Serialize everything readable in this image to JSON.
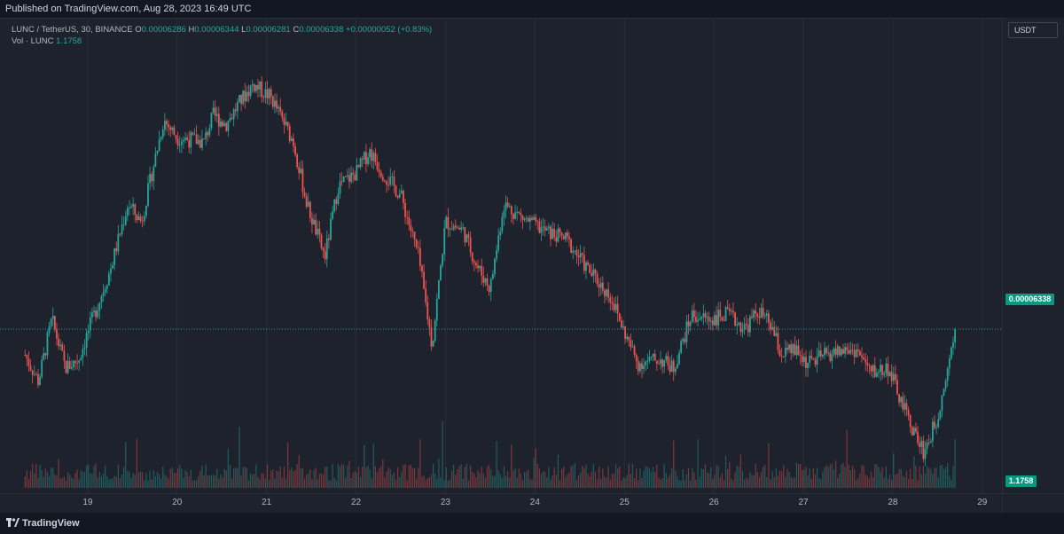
{
  "header": {
    "published": "Published on TradingView.com, Aug 28, 2023 16:49 UTC"
  },
  "legend": {
    "symbol": "LUNC / TetherUS, 30, BINANCE",
    "open_label": "O",
    "open": "0.00006286",
    "high_label": "H",
    "high": "0.00006344",
    "low_label": "L",
    "low": "0.00006281",
    "close_label": "C",
    "close": "0.00006338",
    "change": "+0.00000052 (+0.83%)",
    "volume_label": "Vol · LUNC",
    "volume": "1.1758"
  },
  "currency_button": "USDT",
  "last_price_tag": "0.00006338",
  "last_volume_tag": "1.1758",
  "footer": {
    "brand": "TradingView"
  },
  "colors": {
    "up": "#26a69a",
    "down": "#ef5350",
    "background": "#1e222d",
    "grid": "#2a2e39",
    "last_price": "#089981"
  },
  "chart_data": {
    "type": "candlestick",
    "symbol": "LUNC / TetherUS",
    "interval": "30",
    "exchange": "BINANCE",
    "x_ticks": [
      "19",
      "20",
      "21",
      "22",
      "23",
      "24",
      "25",
      "26",
      "27",
      "28",
      "29"
    ],
    "last_close": 6.338e-05,
    "last_volume": 1.1758,
    "grid": true,
    "price_path": [
      [
        18.3,
        6.28e-05
      ],
      [
        18.45,
        6.22e-05
      ],
      [
        18.6,
        6.36e-05
      ],
      [
        18.75,
        6.25e-05
      ],
      [
        18.9,
        6.27e-05
      ],
      [
        19.0,
        6.33e-05
      ],
      [
        19.25,
        6.47e-05
      ],
      [
        19.45,
        6.62e-05
      ],
      [
        19.6,
        6.58e-05
      ],
      [
        19.75,
        6.72e-05
      ],
      [
        19.85,
        6.81e-05
      ],
      [
        20.0,
        6.77e-05
      ],
      [
        20.3,
        6.76e-05
      ],
      [
        20.4,
        6.82e-05
      ],
      [
        20.55,
        6.8e-05
      ],
      [
        20.7,
        6.85e-05
      ],
      [
        20.85,
        6.89e-05
      ],
      [
        21.05,
        6.86e-05
      ],
      [
        21.3,
        6.76e-05
      ],
      [
        21.45,
        6.62e-05
      ],
      [
        21.65,
        6.5e-05
      ],
      [
        21.8,
        6.66e-05
      ],
      [
        22.0,
        6.69e-05
      ],
      [
        22.15,
        6.74e-05
      ],
      [
        22.3,
        6.69e-05
      ],
      [
        22.5,
        6.64e-05
      ],
      [
        22.7,
        6.5e-05
      ],
      [
        22.85,
        6.3e-05
      ],
      [
        23.0,
        6.58e-05
      ],
      [
        23.2,
        6.56e-05
      ],
      [
        23.35,
        6.48e-05
      ],
      [
        23.5,
        6.43e-05
      ],
      [
        23.65,
        6.62e-05
      ],
      [
        23.85,
        6.59e-05
      ],
      [
        24.1,
        6.56e-05
      ],
      [
        24.35,
        6.54e-05
      ],
      [
        24.6,
        6.47e-05
      ],
      [
        24.85,
        6.41e-05
      ],
      [
        25.0,
        6.33e-05
      ],
      [
        25.15,
        6.26e-05
      ],
      [
        25.4,
        6.27e-05
      ],
      [
        25.55,
        6.25e-05
      ],
      [
        25.75,
        6.37e-05
      ],
      [
        25.95,
        6.36e-05
      ],
      [
        26.15,
        6.37e-05
      ],
      [
        26.35,
        6.34e-05
      ],
      [
        26.5,
        6.38e-05
      ],
      [
        26.65,
        6.34e-05
      ],
      [
        26.75,
        6.28e-05
      ],
      [
        26.9,
        6.29e-05
      ],
      [
        27.05,
        6.26e-05
      ],
      [
        27.25,
        6.28e-05
      ],
      [
        27.45,
        6.29e-05
      ],
      [
        27.6,
        6.29e-05
      ],
      [
        27.75,
        6.24e-05
      ],
      [
        27.95,
        6.25e-05
      ],
      [
        28.1,
        6.17e-05
      ],
      [
        28.25,
        6.1e-05
      ],
      [
        28.35,
        6.06e-05
      ],
      [
        28.5,
        6.14e-05
      ],
      [
        28.6,
        6.24e-05
      ],
      [
        28.7,
        6.34e-05
      ]
    ],
    "y_range": [
      5.98e-05,
      7.02e-05
    ],
    "x_range": [
      18.02,
      29.22
    ]
  }
}
